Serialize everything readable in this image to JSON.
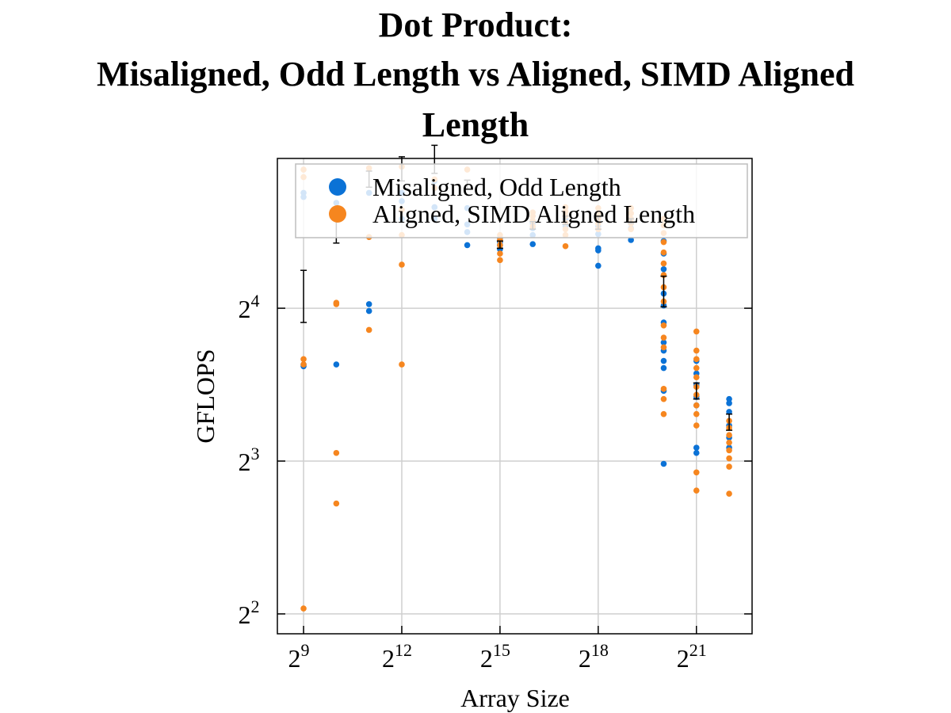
{
  "title_lines": [
    "Dot Product:",
    "Misaligned, Odd Length vs Aligned, SIMD Aligned",
    "Length"
  ],
  "chart_data": {
    "type": "scatter",
    "title": "Dot Product: Misaligned, Odd Length vs Aligned, SIMD Aligned Length",
    "xlabel": "Array Size",
    "ylabel": "GFLOPS",
    "x_scale": "log2",
    "y_scale": "log2",
    "xlim_log2": [
      8.2,
      22.7
    ],
    "ylim_log2": [
      1.87,
      4.98
    ],
    "x_ticks": [
      {
        "exp": "9",
        "value": 512
      },
      {
        "exp": "12",
        "value": 4096
      },
      {
        "exp": "15",
        "value": 32768
      },
      {
        "exp": "18",
        "value": 262144
      },
      {
        "exp": "21",
        "value": 2097152
      }
    ],
    "y_ticks": [
      {
        "exp": "2",
        "value": 4
      },
      {
        "exp": "3",
        "value": 8
      },
      {
        "exp": "4",
        "value": 16
      }
    ],
    "grid": true,
    "legend_position": "top",
    "colors": {
      "misaligned": "#0b72d6",
      "aligned": "#f6861f",
      "errorbar": "#000000"
    },
    "series": [
      {
        "name": "Misaligned, Odd Length",
        "color": "#0b72d6",
        "points": [
          [
            512,
            27.0
          ],
          [
            512,
            26.5
          ],
          [
            512,
            12.4
          ],
          [
            512,
            12.3
          ],
          [
            1024,
            25.8
          ],
          [
            1024,
            24.1
          ],
          [
            1024,
            12.4
          ],
          [
            2048,
            27.0
          ],
          [
            2048,
            16.3
          ],
          [
            2048,
            15.8
          ],
          [
            4096,
            27.0
          ],
          [
            4096,
            26.0
          ],
          [
            4096,
            24.0
          ],
          [
            8192,
            25.3
          ],
          [
            8192,
            28.5
          ],
          [
            8192,
            27.6
          ],
          [
            8192,
            25.3
          ],
          [
            8192,
            24.0
          ],
          [
            16384,
            25.2
          ],
          [
            16384,
            23.4
          ],
          [
            16384,
            22.6
          ],
          [
            16384,
            21.3
          ],
          [
            32768,
            22.0
          ],
          [
            32768,
            21.6
          ],
          [
            32768,
            21.3
          ],
          [
            32768,
            20.9
          ],
          [
            65536,
            23.5
          ],
          [
            65536,
            23.0
          ],
          [
            65536,
            22.3
          ],
          [
            65536,
            21.4
          ],
          [
            131072,
            24.0
          ],
          [
            131072,
            23.2
          ],
          [
            262144,
            23.8
          ],
          [
            262144,
            23.2
          ],
          [
            262144,
            22.4
          ],
          [
            262144,
            21.0
          ],
          [
            262144,
            20.8
          ],
          [
            262144,
            19.4
          ],
          [
            524288,
            23.0
          ],
          [
            524288,
            21.8
          ],
          [
            1048576,
            21.7
          ],
          [
            1048576,
            20.5
          ],
          [
            1048576,
            19.1
          ],
          [
            1048576,
            17.1
          ],
          [
            1048576,
            16.2
          ],
          [
            1048576,
            15.0
          ],
          [
            1048576,
            13.7
          ],
          [
            1048576,
            13.2
          ],
          [
            1048576,
            12.6
          ],
          [
            1048576,
            12.2
          ],
          [
            1048576,
            11.0
          ],
          [
            2097152,
            12.6
          ],
          [
            2097152,
            11.9
          ],
          [
            2097152,
            11.3
          ],
          [
            2097152,
            10.7
          ],
          [
            2097152,
            10.3
          ],
          [
            2097152,
            8.5
          ],
          [
            2097152,
            8.3
          ],
          [
            4194304,
            10.6
          ],
          [
            4194304,
            10.4
          ],
          [
            4194304,
            10.0
          ],
          [
            4194304,
            9.4
          ],
          [
            4194304,
            8.9
          ],
          [
            4194304,
            8.5
          ],
          [
            1048576,
            7.9
          ]
        ]
      },
      {
        "name": "Aligned, SIMD Aligned Length",
        "color": "#f6861f",
        "points": [
          [
            512,
            30.0
          ],
          [
            512,
            29.0
          ],
          [
            512,
            12.7
          ],
          [
            512,
            12.4
          ],
          [
            512,
            4.1
          ],
          [
            1024,
            16.4
          ],
          [
            1024,
            16.3
          ],
          [
            1024,
            8.3
          ],
          [
            1024,
            6.6
          ],
          [
            2048,
            30.2
          ],
          [
            2048,
            22.1
          ],
          [
            2048,
            14.5
          ],
          [
            4096,
            30.4
          ],
          [
            4096,
            25.0
          ],
          [
            4096,
            22.3
          ],
          [
            4096,
            19.5
          ],
          [
            4096,
            12.4
          ],
          [
            8192,
            28.7
          ],
          [
            8192,
            27.6
          ],
          [
            16384,
            30.0
          ],
          [
            32768,
            22.3
          ],
          [
            32768,
            21.8
          ],
          [
            32768,
            21.3
          ],
          [
            32768,
            20.5
          ],
          [
            32768,
            19.9
          ],
          [
            65536,
            24.7
          ],
          [
            65536,
            24.3
          ],
          [
            65536,
            23.8
          ],
          [
            65536,
            23.2
          ],
          [
            131072,
            25.3
          ],
          [
            131072,
            24.8
          ],
          [
            131072,
            24.3
          ],
          [
            131072,
            23.6
          ],
          [
            131072,
            22.9
          ],
          [
            131072,
            22.3
          ],
          [
            131072,
            21.2
          ],
          [
            262144,
            25.2
          ],
          [
            262144,
            24.6
          ],
          [
            262144,
            24.0
          ],
          [
            262144,
            23.5
          ],
          [
            262144,
            22.9
          ],
          [
            524288,
            25.2
          ],
          [
            524288,
            24.6
          ],
          [
            524288,
            24.0
          ],
          [
            524288,
            23.5
          ],
          [
            524288,
            22.9
          ],
          [
            1048576,
            24.0
          ],
          [
            1048576,
            23.3
          ],
          [
            1048576,
            22.5
          ],
          [
            1048576,
            21.6
          ],
          [
            1048576,
            20.6
          ],
          [
            1048576,
            19.6
          ],
          [
            1048576,
            18.6
          ],
          [
            1048576,
            17.6
          ],
          [
            1048576,
            16.5
          ],
          [
            1048576,
            14.8
          ],
          [
            1048576,
            14.0
          ],
          [
            1048576,
            13.4
          ],
          [
            1048576,
            11.1
          ],
          [
            1048576,
            10.6
          ],
          [
            1048576,
            9.9
          ],
          [
            2097152,
            14.4
          ],
          [
            2097152,
            13.2
          ],
          [
            2097152,
            12.7
          ],
          [
            2097152,
            12.2
          ],
          [
            2097152,
            11.7
          ],
          [
            2097152,
            11.2
          ],
          [
            2097152,
            10.8
          ],
          [
            2097152,
            10.3
          ],
          [
            2097152,
            9.9
          ],
          [
            2097152,
            9.4
          ],
          [
            2097152,
            7.6
          ],
          [
            2097152,
            7.0
          ],
          [
            4194304,
            9.6
          ],
          [
            4194304,
            9.3
          ],
          [
            4194304,
            9.0
          ],
          [
            4194304,
            8.7
          ],
          [
            4194304,
            8.4
          ],
          [
            4194304,
            8.1
          ],
          [
            4194304,
            7.8
          ],
          [
            4194304,
            6.9
          ]
        ]
      }
    ],
    "error_bars": [
      {
        "x": 512,
        "low": 15.0,
        "high": 19.0
      },
      {
        "x": 1024,
        "low": 21.5,
        "high": 25.0
      },
      {
        "x": 2048,
        "low": 27.7,
        "high": 29.8
      },
      {
        "x": 4096,
        "low": 28.5,
        "high": 31.8
      },
      {
        "x": 8192,
        "low": 29.5,
        "high": 33.5
      },
      {
        "x": 16384,
        "low": 27.5,
        "high": 28.6
      },
      {
        "x": 32768,
        "low": 21.0,
        "high": 21.7
      },
      {
        "x": 65536,
        "low": 22.9,
        "high": 23.7
      },
      {
        "x": 131072,
        "low": 23.4,
        "high": 24.3
      },
      {
        "x": 262144,
        "low": 22.9,
        "high": 24.2
      },
      {
        "x": 524288,
        "low": 23.5,
        "high": 24.0
      },
      {
        "x": 1048576,
        "low": 16.1,
        "high": 18.5
      },
      {
        "x": 2097152,
        "low": 10.6,
        "high": 11.4
      },
      {
        "x": 4194304,
        "low": 9.2,
        "high": 9.9
      }
    ]
  }
}
